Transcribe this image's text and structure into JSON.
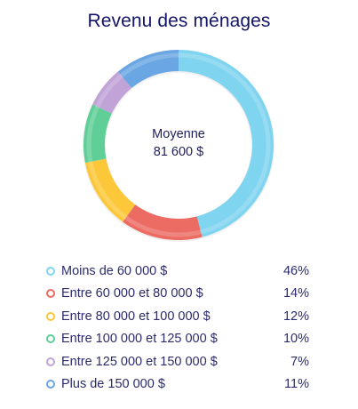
{
  "chart_data": {
    "type": "pie",
    "title": "Revenu des ménages",
    "center": {
      "label": "Moyenne",
      "value": "81 600 $"
    },
    "categories": [
      "Moins de 60 000 $",
      "Entre 60 000 et 80 000 $",
      "Entre 80 000 et 100 000 $",
      "Entre 100 000 et 125 000 $",
      "Entre 125 000 et 150 000 $",
      "Plus de 150 000 $"
    ],
    "values": [
      46,
      14,
      12,
      10,
      7,
      11
    ],
    "value_labels": [
      "46%",
      "14%",
      "12%",
      "10%",
      "7%",
      "11%"
    ],
    "colors": [
      "#7fd4f0",
      "#ec6b63",
      "#fcc83a",
      "#5fcf97",
      "#c1a3d8",
      "#6aa6e2"
    ],
    "legend_placement": "bottom",
    "grid": false
  }
}
